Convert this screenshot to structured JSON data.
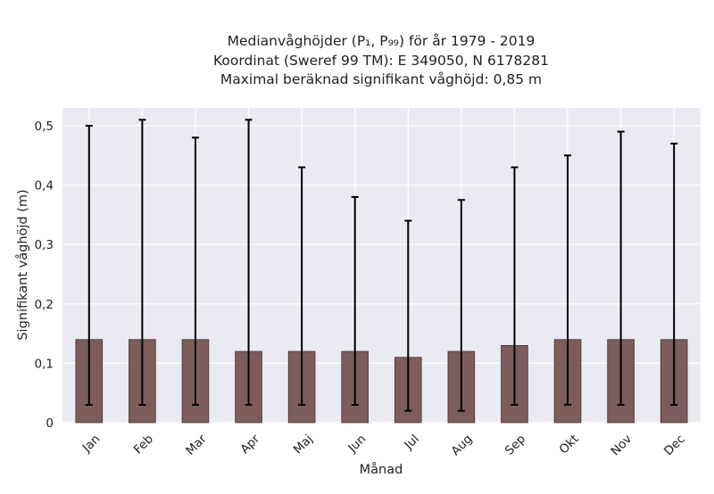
{
  "chart_data": {
    "type": "bar",
    "title_lines": [
      "Medianvåghöjder (P₁, P₉₉) för år 1979 - 2019",
      "Koordinat (Sweref 99 TM): E 349050, N 6178281",
      "Maximal beräknad signifikant våghöjd: 0,85 m"
    ],
    "xlabel": "Månad",
    "ylabel": "Signifikant våghöjd (m)",
    "categories": [
      "Jan",
      "Feb",
      "Mar",
      "Apr",
      "Maj",
      "Jun",
      "Jul",
      "Aug",
      "Sep",
      "Okt",
      "Nov",
      "Dec"
    ],
    "series": [
      {
        "values": [
          0.14,
          0.14,
          0.14,
          0.12,
          0.12,
          0.12,
          0.11,
          0.12,
          0.13,
          0.14,
          0.14,
          0.14
        ],
        "err_low": [
          0.03,
          0.03,
          0.03,
          0.03,
          0.03,
          0.03,
          0.02,
          0.02,
          0.03,
          0.03,
          0.03,
          0.03
        ],
        "err_high": [
          0.5,
          0.51,
          0.48,
          0.51,
          0.43,
          0.38,
          0.34,
          0.375,
          0.43,
          0.45,
          0.49,
          0.47
        ]
      }
    ],
    "yticks": [
      0,
      0.1,
      0.2,
      0.3,
      0.4,
      0.5
    ],
    "ytick_labels": [
      "0",
      "0,1",
      "0,2",
      "0,3",
      "0,4",
      "0,5"
    ],
    "ylim": [
      0,
      0.53
    ],
    "grid": true,
    "colors": {
      "bar": "#7d5c5c",
      "bar_edge": "#4a3434",
      "error": "#000000",
      "plot_bg": "#eaeaf2",
      "grid": "#ffffff"
    }
  }
}
